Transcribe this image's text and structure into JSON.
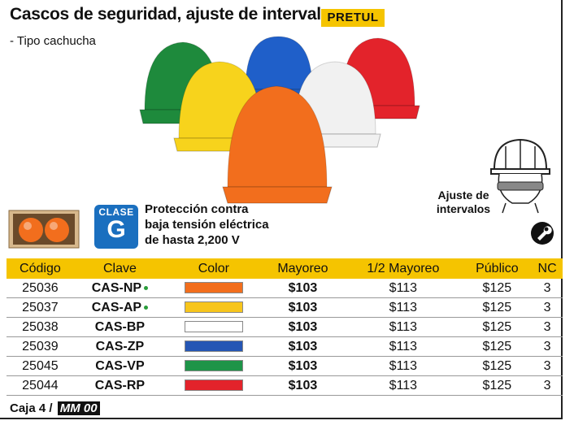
{
  "header": {
    "title": "Cascos de seguridad, ajuste de intervalos",
    "brand": "PRETUL",
    "subtitle": "- Tipo cachucha"
  },
  "clase": {
    "label": "CLASE",
    "value": "G"
  },
  "protection": {
    "line1": "Protección contra",
    "line2": "baja tensión eléctrica",
    "line3": "de hasta 2,200 V"
  },
  "adjust": {
    "line1": "Ajuste de",
    "line2": "intervalos"
  },
  "helmet_colors": [
    "#1e8a3c",
    "#1f5fc9",
    "#e3232b",
    "#f7d31c",
    "#f1f1f1",
    "#f26e1d"
  ],
  "table": {
    "headers": [
      "Código",
      "Clave",
      "Color",
      "Mayoreo",
      "1/2 Mayoreo",
      "Público",
      "NC"
    ],
    "rows": [
      {
        "codigo": "25036",
        "clave": "CAS-NP",
        "dot": true,
        "color": "#f26e1d",
        "mayoreo": "$103",
        "medio": "$113",
        "publico": "$125",
        "nc": "3"
      },
      {
        "codigo": "25037",
        "clave": "CAS-AP",
        "dot": true,
        "color": "#f7c51c",
        "mayoreo": "$103",
        "medio": "$113",
        "publico": "$125",
        "nc": "3"
      },
      {
        "codigo": "25038",
        "clave": "CAS-BP",
        "dot": false,
        "color": "#ffffff",
        "mayoreo": "$103",
        "medio": "$113",
        "publico": "$125",
        "nc": "3"
      },
      {
        "codigo": "25039",
        "clave": "CAS-ZP",
        "dot": false,
        "color": "#2556b4",
        "mayoreo": "$103",
        "medio": "$113",
        "publico": "$125",
        "nc": "3"
      },
      {
        "codigo": "25045",
        "clave": "CAS-VP",
        "dot": false,
        "color": "#1e9448",
        "mayoreo": "$103",
        "medio": "$113",
        "publico": "$125",
        "nc": "3"
      },
      {
        "codigo": "25044",
        "clave": "CAS-RP",
        "dot": false,
        "color": "#e3232b",
        "mayoreo": "$103",
        "medio": "$113",
        "publico": "$125",
        "nc": "3"
      }
    ]
  },
  "footer": {
    "caja": "Caja 4 /",
    "mm": "MM 00"
  }
}
